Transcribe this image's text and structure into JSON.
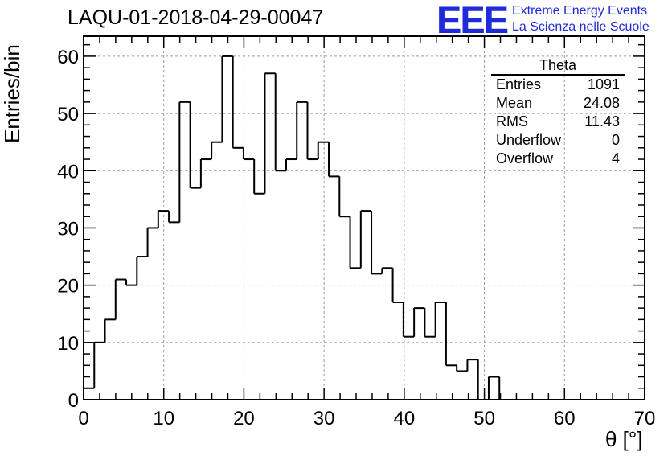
{
  "header": {
    "title": "LAQU-01-2018-04-29-00047",
    "logo_text": "EEE",
    "logo_line1": "Extreme Energy Events",
    "logo_line2": "La Scienza nelle Scuole",
    "logo_color": "#1f2bd8"
  },
  "stats_box": {
    "name": "Theta",
    "rows": [
      {
        "label": "Entries",
        "value": "1091"
      },
      {
        "label": "Mean",
        "value": "24.08"
      },
      {
        "label": "RMS",
        "value": "11.43"
      },
      {
        "label": "Underflow",
        "value": "0"
      },
      {
        "label": "Overflow",
        "value": "4"
      }
    ]
  },
  "chart_data": {
    "type": "bar",
    "histogram": true,
    "bin_width": 1.33,
    "bin_edges_start": 0,
    "values": [
      2,
      10,
      14,
      21,
      20,
      25,
      30,
      33,
      31,
      52,
      37,
      42,
      45,
      60,
      44,
      42,
      36,
      57,
      40,
      42,
      52,
      42,
      45,
      39,
      32,
      23,
      33,
      22,
      23,
      17,
      11,
      16,
      11,
      17,
      6,
      5,
      7,
      0,
      4,
      0
    ],
    "xlabel": "θ [°]",
    "ylabel": "Entries/bin",
    "xlim": [
      0,
      70
    ],
    "ylim": [
      0,
      63.5
    ],
    "xticks": [
      0,
      10,
      20,
      30,
      40,
      50,
      60,
      70
    ],
    "yticks": [
      0,
      10,
      20,
      30,
      40,
      50,
      60
    ],
    "grid": true,
    "line_color": "#000000"
  }
}
